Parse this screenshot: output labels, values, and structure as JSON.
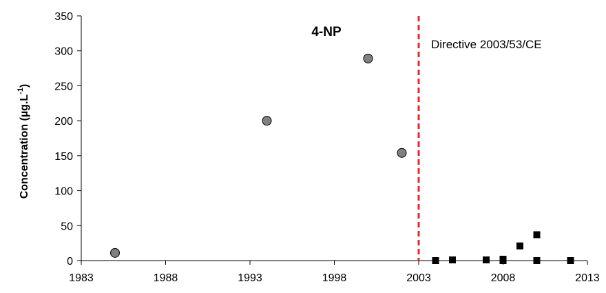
{
  "chart_data": {
    "type": "scatter",
    "title": "4-NP",
    "xlabel": "",
    "ylabel": "Concentration (µg.L",
    "ylabel_superscript": "-1",
    "ylabel_close": ")",
    "xlim": [
      1983,
      2013
    ],
    "ylim": [
      0,
      350
    ],
    "xticks": [
      1983,
      1988,
      1993,
      1998,
      2003,
      2008,
      2013
    ],
    "yticks": [
      0,
      50,
      100,
      150,
      200,
      250,
      300,
      350
    ],
    "grid": false,
    "series": [
      {
        "marker": "circle",
        "color": "#808080",
        "points": [
          {
            "x": 1985,
            "y": 11
          },
          {
            "x": 1994,
            "y": 200
          },
          {
            "x": 2000,
            "y": 289
          },
          {
            "x": 2002,
            "y": 154
          }
        ]
      },
      {
        "marker": "square",
        "color": "#000000",
        "points": [
          {
            "x": 2004,
            "y": 0
          },
          {
            "x": 2005,
            "y": 1
          },
          {
            "x": 2007,
            "y": 1
          },
          {
            "x": 2008,
            "y": 0
          },
          {
            "x": 2008,
            "y": 2
          },
          {
            "x": 2009,
            "y": 21
          },
          {
            "x": 2010,
            "y": 37
          },
          {
            "x": 2010,
            "y": 0
          },
          {
            "x": 2012,
            "y": 0
          }
        ]
      }
    ],
    "reference_line": {
      "x": 2003,
      "color": "#e8262b",
      "style": "dashed",
      "label": "Directive 2003/53/CE"
    }
  }
}
